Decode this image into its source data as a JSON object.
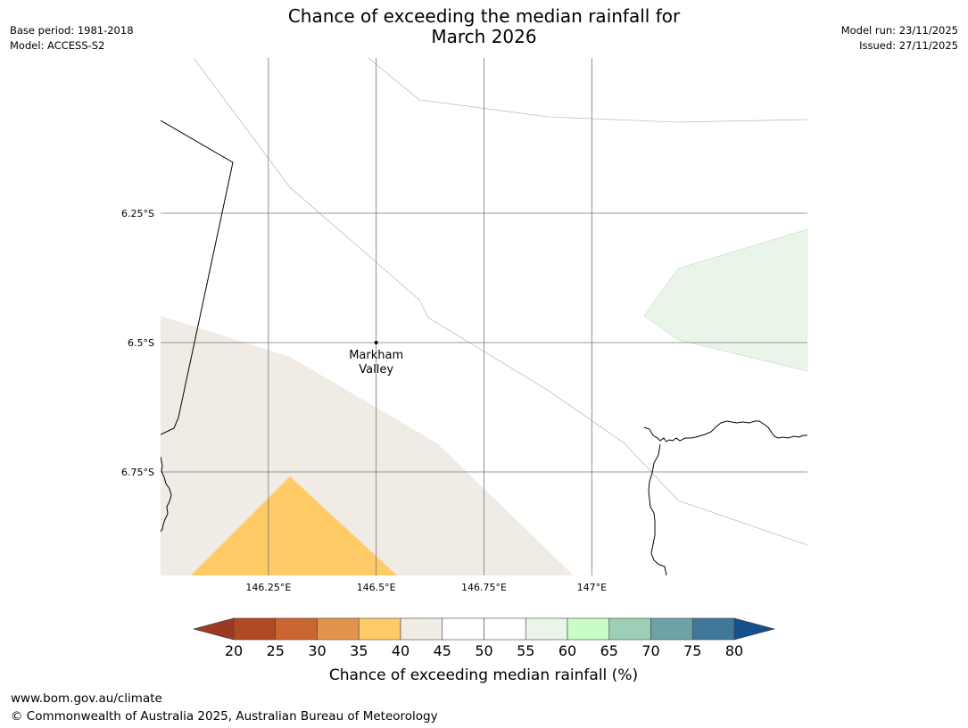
{
  "title": {
    "line1": "Chance of exceeding the median rainfall for",
    "line2": "March 2026"
  },
  "meta_left": {
    "base_period": "Base period: 1981-2018",
    "model": "Model: ACCESS-S2"
  },
  "meta_right": {
    "model_run": "Model run: 23/11/2025",
    "issued": "Issued: 27/11/2025"
  },
  "map": {
    "lon_range": [
      146.0,
      147.5
    ],
    "lat_range": [
      -6.95,
      -5.95
    ],
    "lat_gridlines": [
      {
        "value": -6.25,
        "label": "6.25°S"
      },
      {
        "value": -6.5,
        "label": "6.5°S"
      },
      {
        "value": -6.75,
        "label": "6.75°S"
      }
    ],
    "lon_gridlines": [
      {
        "value": 146.25,
        "label": "146.25°E"
      },
      {
        "value": 146.5,
        "label": "146.5°E"
      },
      {
        "value": 146.75,
        "label": "146.75°E"
      },
      {
        "value": 147.0,
        "label": "147°E"
      }
    ],
    "place": {
      "name_line1": "Markham",
      "name_line2": "Valley",
      "lon": 146.5,
      "lat": -6.5
    },
    "category_colors": {
      "35-40": "#fecb66",
      "40-45": "#f0ebe5",
      "55-60": "#eaf5ea"
    }
  },
  "colorbar": {
    "label": "Chance of exceeding median rainfall (%)",
    "ticks": [
      "20",
      "25",
      "30",
      "35",
      "40",
      "45",
      "50",
      "55",
      "60",
      "65",
      "70",
      "75",
      "80"
    ],
    "under_color": "#9b3a22",
    "over_color": "#13508c",
    "colors": [
      "#b04a25",
      "#cb6532",
      "#e3944a",
      "#fecb66",
      "#f0ebe5",
      "#ffffff",
      "#ffffff",
      "#eaf5ea",
      "#c8fdc8",
      "#9ccfb5",
      "#6da3a6",
      "#40789a"
    ]
  },
  "footer": {
    "website": "www.bom.gov.au/climate",
    "copyright": "© Commonwealth of Australia 2025, Australian Bureau of Meteorology"
  }
}
